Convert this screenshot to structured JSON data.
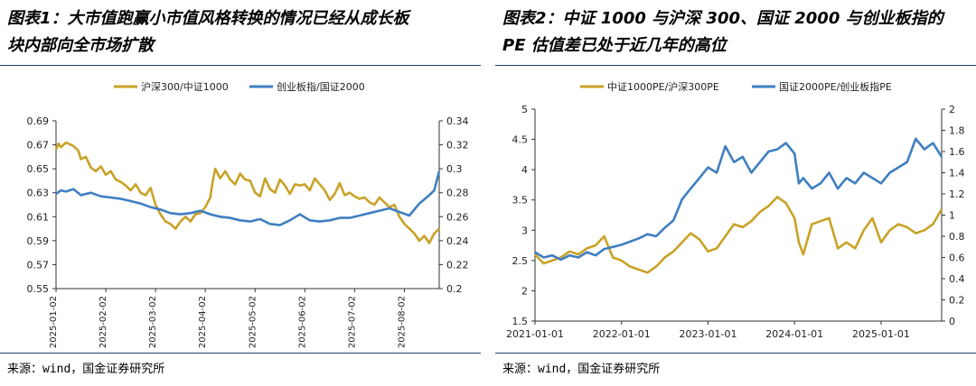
{
  "panels": [
    {
      "title_line1": "图表1：大市值跑赢小市值风格转换的情况已经从成长板",
      "title_line2": "块内部向全市场扩散",
      "source": "来源：wind，国金证券研究所",
      "chart_data": {
        "type": "line",
        "legend": [
          "沪深300/中证1000",
          "创业板指/国证2000"
        ],
        "x_ticks": [
          "2025-01-02",
          "2025-02-02",
          "2025-03-02",
          "2025-04-02",
          "2025-05-02",
          "2025-06-02",
          "2025-07-02",
          "2025-08-02"
        ],
        "y_left": {
          "ticks": [
            "0.69",
            "0.67",
            "0.65",
            "0.63",
            "0.61",
            "0.59",
            "0.57",
            "0.55"
          ],
          "range": [
            0.55,
            0.69
          ]
        },
        "y_right": {
          "ticks": [
            "0.34",
            "0.32",
            "0.3",
            "0.28",
            "0.26",
            "0.24",
            "0.22",
            "0.2"
          ],
          "range": [
            0.2,
            0.34
          ]
        },
        "series": [
          {
            "name": "沪深300/中证1000",
            "axis": "left",
            "color": "#c9a227",
            "x": [
              0,
              0.05,
              0.1,
              0.2,
              0.35,
              0.45,
              0.5,
              0.6,
              0.7,
              0.8,
              0.9,
              1.0,
              1.1,
              1.2,
              1.3,
              1.4,
              1.5,
              1.6,
              1.7,
              1.8,
              1.9,
              2.0,
              2.1,
              2.2,
              2.3,
              2.4,
              2.5,
              2.6,
              2.7,
              2.8,
              2.9,
              3.0,
              3.1,
              3.15,
              3.2,
              3.3,
              3.4,
              3.5,
              3.6,
              3.7,
              3.8,
              3.9,
              4.0,
              4.1,
              4.2,
              4.3,
              4.4,
              4.5,
              4.6,
              4.7,
              4.8,
              4.9,
              5.0,
              5.1,
              5.2,
              5.3,
              5.4,
              5.5,
              5.6,
              5.7,
              5.8,
              5.9,
              6.0,
              6.1,
              6.2,
              6.3,
              6.4,
              6.5,
              6.6,
              6.7,
              6.8,
              6.9,
              7.0,
              7.1,
              7.2,
              7.3,
              7.4,
              7.5,
              7.6,
              7.7
            ],
            "y": [
              0.666,
              0.671,
              0.668,
              0.672,
              0.669,
              0.665,
              0.658,
              0.66,
              0.651,
              0.648,
              0.652,
              0.645,
              0.648,
              0.641,
              0.639,
              0.636,
              0.632,
              0.637,
              0.63,
              0.628,
              0.634,
              0.62,
              0.612,
              0.606,
              0.604,
              0.6,
              0.606,
              0.61,
              0.606,
              0.612,
              0.613,
              0.618,
              0.626,
              0.64,
              0.65,
              0.642,
              0.648,
              0.641,
              0.637,
              0.646,
              0.641,
              0.64,
              0.63,
              0.627,
              0.642,
              0.633,
              0.63,
              0.641,
              0.636,
              0.629,
              0.637,
              0.636,
              0.637,
              0.632,
              0.642,
              0.637,
              0.632,
              0.624,
              0.629,
              0.638,
              0.628,
              0.63,
              0.627,
              0.625,
              0.626,
              0.622,
              0.62,
              0.626,
              0.622,
              0.618,
              0.62,
              0.61,
              0.604,
              0.6,
              0.596,
              0.59,
              0.594,
              0.588,
              0.596,
              0.6
            ]
          },
          {
            "name": "创业板指/国证2000",
            "axis": "right",
            "color": "#3f7fc1",
            "x": [
              0,
              0.1,
              0.2,
              0.35,
              0.5,
              0.7,
              0.9,
              1.1,
              1.3,
              1.5,
              1.7,
              1.9,
              2.1,
              2.3,
              2.5,
              2.7,
              2.9,
              3.1,
              3.3,
              3.5,
              3.7,
              3.9,
              4.1,
              4.3,
              4.5,
              4.7,
              4.9,
              5.1,
              5.3,
              5.5,
              5.7,
              5.9,
              6.1,
              6.3,
              6.5,
              6.7,
              6.9,
              7.1,
              7.3,
              7.5,
              7.6,
              7.7
            ],
            "y": [
              0.279,
              0.282,
              0.281,
              0.283,
              0.278,
              0.28,
              0.277,
              0.276,
              0.275,
              0.273,
              0.271,
              0.268,
              0.266,
              0.263,
              0.262,
              0.263,
              0.265,
              0.262,
              0.26,
              0.259,
              0.257,
              0.256,
              0.258,
              0.254,
              0.253,
              0.257,
              0.262,
              0.257,
              0.256,
              0.257,
              0.259,
              0.259,
              0.261,
              0.263,
              0.265,
              0.267,
              0.264,
              0.261,
              0.271,
              0.278,
              0.282,
              0.298
            ]
          }
        ]
      }
    },
    {
      "title_line1": "图表2：中证 1000 与沪深 300、国证 2000 与创业板指的",
      "title_line2": "PE 估值差已处于近几年的高位",
      "source": "来源：wind，国金证券研究所",
      "chart_data": {
        "type": "line",
        "legend": [
          "中证1000PE/沪深300PE",
          "国证2000PE/创业板指PE"
        ],
        "x_ticks": [
          "2021-01-01",
          "2022-01-01",
          "2023-01-01",
          "2024-01-01",
          "2025-01-01"
        ],
        "y_left": {
          "ticks": [
            "5",
            "4.5",
            "4",
            "3.5",
            "3",
            "2.5",
            "2",
            "1.5"
          ],
          "range": [
            1.5,
            5
          ]
        },
        "y_right": {
          "ticks": [
            "2",
            "1.8",
            "1.6",
            "1.4",
            "1.2",
            "1",
            "0.8",
            "0.6",
            "0.4",
            "0.2",
            "0"
          ],
          "range": [
            0,
            2
          ]
        },
        "series": [
          {
            "name": "中证1000PE/沪深300PE",
            "axis": "left",
            "color": "#c9a227",
            "x": [
              0,
              0.1,
              0.2,
              0.3,
              0.4,
              0.5,
              0.6,
              0.7,
              0.8,
              0.9,
              1.0,
              1.1,
              1.2,
              1.3,
              1.4,
              1.5,
              1.6,
              1.7,
              1.8,
              1.9,
              2.0,
              2.1,
              2.2,
              2.3,
              2.4,
              2.5,
              2.6,
              2.7,
              2.8,
              2.9,
              3.0,
              3.05,
              3.1,
              3.2,
              3.3,
              3.4,
              3.5,
              3.6,
              3.7,
              3.8,
              3.9,
              4.0,
              4.1,
              4.2,
              4.3,
              4.4,
              4.5,
              4.6,
              4.7
            ],
            "y": [
              2.6,
              2.45,
              2.5,
              2.55,
              2.65,
              2.6,
              2.7,
              2.75,
              2.9,
              2.55,
              2.5,
              2.4,
              2.35,
              2.3,
              2.4,
              2.55,
              2.65,
              2.8,
              2.95,
              2.85,
              2.65,
              2.7,
              2.9,
              3.1,
              3.05,
              3.15,
              3.3,
              3.4,
              3.55,
              3.45,
              3.2,
              2.8,
              2.6,
              3.1,
              3.15,
              3.2,
              2.7,
              2.8,
              2.7,
              3.0,
              3.2,
              2.8,
              3.0,
              3.1,
              3.05,
              2.95,
              3.0,
              3.1,
              3.35
            ]
          },
          {
            "name": "国证2000PE/创业板指PE",
            "axis": "right",
            "color": "#3f7fc1",
            "x": [
              0,
              0.1,
              0.2,
              0.3,
              0.4,
              0.5,
              0.6,
              0.7,
              0.8,
              0.9,
              1.0,
              1.1,
              1.2,
              1.3,
              1.4,
              1.5,
              1.6,
              1.7,
              1.8,
              1.9,
              2.0,
              2.1,
              2.2,
              2.3,
              2.4,
              2.5,
              2.6,
              2.7,
              2.8,
              2.9,
              3.0,
              3.05,
              3.1,
              3.2,
              3.3,
              3.4,
              3.5,
              3.6,
              3.7,
              3.8,
              3.9,
              4.0,
              4.1,
              4.2,
              4.3,
              4.4,
              4.5,
              4.6,
              4.7
            ],
            "y": [
              0.65,
              0.6,
              0.62,
              0.58,
              0.62,
              0.6,
              0.65,
              0.62,
              0.68,
              0.7,
              0.72,
              0.75,
              0.78,
              0.82,
              0.8,
              0.88,
              0.95,
              1.15,
              1.25,
              1.35,
              1.45,
              1.4,
              1.65,
              1.5,
              1.55,
              1.4,
              1.5,
              1.6,
              1.62,
              1.68,
              1.58,
              1.3,
              1.35,
              1.25,
              1.3,
              1.4,
              1.25,
              1.35,
              1.3,
              1.4,
              1.35,
              1.3,
              1.4,
              1.45,
              1.5,
              1.72,
              1.62,
              1.68,
              1.55
            ]
          }
        ]
      }
    }
  ]
}
